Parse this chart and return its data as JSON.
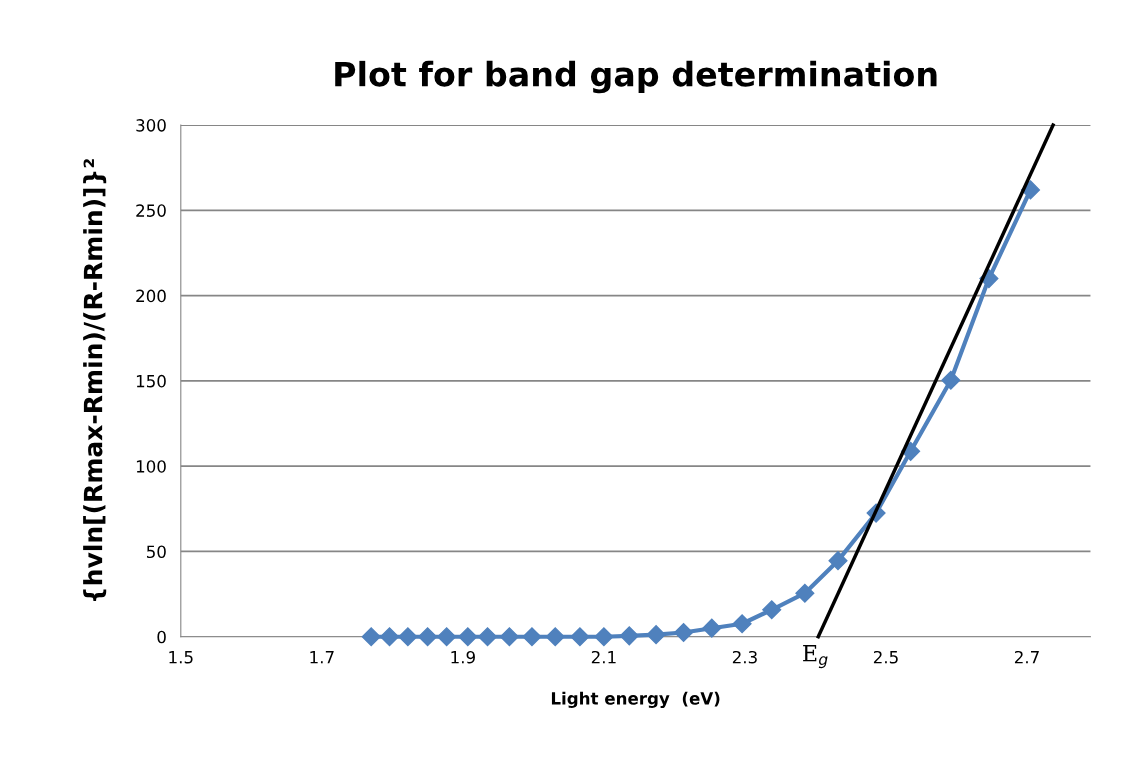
{
  "chart_data": {
    "type": "line",
    "title": "Plot for band gap determination",
    "xlabel": "Light energy  (eV)",
    "ylabel": "{hvln[(Rmax-Rmin)/(R-Rmin)]}²",
    "x": [
      1.77,
      1.796,
      1.822,
      1.85,
      1.877,
      1.907,
      1.935,
      1.966,
      1.998,
      2.031,
      2.066,
      2.1,
      2.136,
      2.174,
      2.213,
      2.253,
      2.296,
      2.338,
      2.385,
      2.432,
      2.486,
      2.535,
      2.592,
      2.646,
      2.705
    ],
    "series": [
      {
        "color": "#4f81bd",
        "marker": "diamond",
        "values": [
          0,
          0,
          0,
          0,
          0,
          0,
          0,
          0,
          0,
          0,
          0,
          0,
          0.5,
          1.2,
          2.5,
          5,
          7.6,
          15.8,
          25.5,
          44.6,
          72.5,
          108.7,
          150.4,
          210,
          262
        ]
      },
      {
        "type": "line",
        "color": "#000000",
        "marker": "none",
        "x": [
          2.404,
          2.737
        ],
        "values": [
          0,
          300
        ]
      }
    ],
    "annotations": [
      {
        "text": "E$_{g}$",
        "x": 2.4,
        "y": 0
      }
    ],
    "xlim": [
      1.5,
      2.79
    ],
    "xticks": [
      1.5,
      1.7,
      1.9,
      2.1,
      2.3,
      2.5,
      2.7
    ],
    "ylim": [
      0,
      300
    ],
    "yticks": [
      0,
      50,
      100,
      150,
      200,
      250,
      300
    ],
    "grid": "y",
    "legend": false
  }
}
